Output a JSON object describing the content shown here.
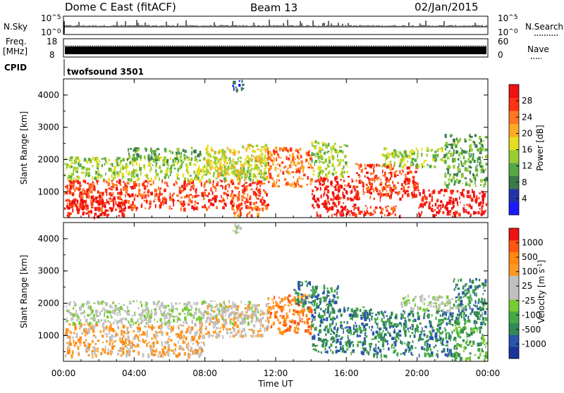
{
  "header": {
    "station": "Dome C East (fitACF)",
    "beam": "Beam 13",
    "date": "02/Jan/2015"
  },
  "top_panels": {
    "nsky": {
      "label": "N.Sky",
      "tick_top_base": "10",
      "tick_top_exp": "^5",
      "tick_bottom_base": "10",
      "tick_bottom_exp": "^0"
    },
    "nsearch": {
      "label": "N.Search",
      "tick_top_base": "10",
      "tick_top_exp": "^5",
      "tick_bottom_base": "10",
      "tick_bottom_exp": "^0"
    },
    "freq": {
      "label_line1": "Freq.",
      "label_line2": "[MHz]",
      "tick_top": "18",
      "tick_bottom": "8"
    },
    "nave": {
      "label": "Nave",
      "tick_top": "60",
      "tick_bottom": "0"
    },
    "cpid": {
      "label": "CPID",
      "value": "twofsound 3501"
    }
  },
  "chart_data": [
    {
      "type": "heatmap",
      "name": "power",
      "ylabel": "Slant Range [km]",
      "xlabel": "",
      "x_ticks": [
        "00:00",
        "04:00",
        "08:00",
        "12:00",
        "16:00",
        "20:00",
        "00:00"
      ],
      "xlim_hours": [
        0,
        24
      ],
      "y_ticks": [
        1000,
        2000,
        3000,
        4000
      ],
      "ylim": [
        200,
        4500
      ],
      "colorbar": {
        "label": "Power [dB]",
        "ticks": [
          "4",
          "8",
          "12",
          "16",
          "20",
          "24",
          "28"
        ],
        "colors": [
          "#1a1aff",
          "#2233aa",
          "#3a7a4a",
          "#55aa44",
          "#99cc33",
          "#e6dd22",
          "#ffaa22",
          "#ff7722",
          "#ff3311",
          "#ee1111"
        ]
      },
      "regions": [
        {
          "t0": 0.0,
          "t1": 11.5,
          "r0": 500,
          "r1": 1400,
          "level": 8
        },
        {
          "t0": 0.0,
          "t1": 11.5,
          "r0": 1400,
          "r1": 2100,
          "level": 4
        },
        {
          "t0": 0.0,
          "t1": 3.5,
          "r0": 250,
          "r1": 800,
          "level": 9
        },
        {
          "t0": 3.5,
          "t1": 8.0,
          "r0": 2000,
          "r1": 2400,
          "level": 3
        },
        {
          "t0": 8.0,
          "t1": 11.5,
          "r0": 1500,
          "r1": 2500,
          "level": 5
        },
        {
          "t0": 9.5,
          "t1": 11.0,
          "r0": 250,
          "r1": 600,
          "level": 7
        },
        {
          "t0": 11.5,
          "t1": 14.0,
          "r0": 1200,
          "r1": 2400,
          "level": 7
        },
        {
          "t0": 14.0,
          "t1": 16.5,
          "r0": 300,
          "r1": 1500,
          "level": 9
        },
        {
          "t0": 14.0,
          "t1": 16.0,
          "r0": 1500,
          "r1": 2600,
          "level": 4
        },
        {
          "t0": 16.5,
          "t1": 20.0,
          "r0": 800,
          "r1": 1900,
          "level": 8
        },
        {
          "t0": 16.5,
          "t1": 19.0,
          "r0": 250,
          "r1": 600,
          "level": 8
        },
        {
          "t0": 18.0,
          "t1": 21.5,
          "r0": 1800,
          "r1": 2400,
          "level": 4
        },
        {
          "t0": 20.0,
          "t1": 24.0,
          "r0": 300,
          "r1": 1100,
          "level": 9
        },
        {
          "t0": 21.5,
          "t1": 24.0,
          "r0": 1200,
          "r1": 2800,
          "level": 3
        },
        {
          "t0": 9.5,
          "t1": 10.2,
          "r0": 4200,
          "r1": 4500,
          "level": 1
        }
      ]
    },
    {
      "type": "heatmap",
      "name": "velocity",
      "ylabel": "Slant Range [km]",
      "xlabel": "Time UT",
      "x_ticks": [
        "00:00",
        "04:00",
        "08:00",
        "12:00",
        "16:00",
        "20:00",
        "00:00"
      ],
      "xlim_hours": [
        0,
        24
      ],
      "y_ticks": [
        1000,
        2000,
        3000,
        4000
      ],
      "ylim": [
        200,
        4500
      ],
      "colorbar": {
        "label": "Velocity [m s-1]",
        "label_main": "Velocity [m s",
        "label_sup": "-1",
        "label_end": "]",
        "ticks": [
          "1000",
          "500",
          "100",
          "25",
          "-25",
          "-100",
          "-500",
          "-1000"
        ],
        "colors": [
          "#1a3399",
          "#2a55aa",
          "#338855",
          "#44aa44",
          "#77cc33",
          "#c0c0c0",
          "#c0c0c0",
          "#ff9922",
          "#ff8811",
          "#ff5511",
          "#ee1111"
        ]
      },
      "regions": [
        {
          "t0": 0.0,
          "t1": 8.0,
          "r0": 400,
          "r1": 1400,
          "level": 7
        },
        {
          "t0": 0.0,
          "t1": 11.0,
          "r0": 1400,
          "r1": 2100,
          "level": 5
        },
        {
          "t0": 8.0,
          "t1": 11.5,
          "r0": 1000,
          "r1": 2000,
          "level": 6
        },
        {
          "t0": 11.5,
          "t1": 14.0,
          "r0": 1100,
          "r1": 2300,
          "level": 8
        },
        {
          "t0": 13.0,
          "t1": 15.5,
          "r0": 1900,
          "r1": 2700,
          "level": 2
        },
        {
          "t0": 14.0,
          "t1": 17.5,
          "r0": 500,
          "r1": 1900,
          "level": 2
        },
        {
          "t0": 17.5,
          "t1": 22.0,
          "r0": 400,
          "r1": 1800,
          "level": 2
        },
        {
          "t0": 19.0,
          "t1": 22.5,
          "r0": 1800,
          "r1": 2300,
          "level": 5
        },
        {
          "t0": 22.0,
          "t1": 24.0,
          "r0": 300,
          "r1": 1400,
          "level": 3
        },
        {
          "t0": 22.0,
          "t1": 24.0,
          "r0": 1400,
          "r1": 2800,
          "level": 2
        },
        {
          "t0": 9.5,
          "t1": 10.2,
          "r0": 4200,
          "r1": 4500,
          "level": 5
        }
      ]
    }
  ]
}
